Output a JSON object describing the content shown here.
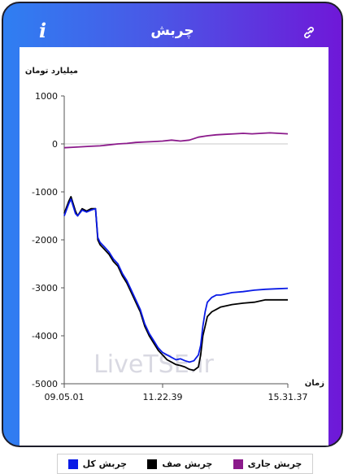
{
  "header": {
    "title": "چربش",
    "info_icon": "info-icon",
    "link_icon": "link-icon"
  },
  "watermark": "LiveTSE.ir",
  "chart_data": {
    "type": "line",
    "ylabel": "میلیارد تومان",
    "xlabel": "زمان",
    "ylim": [
      -5000,
      1000
    ],
    "yticks": [
      "1000",
      "0",
      "-1000",
      "-2000",
      "-3000",
      "-4000",
      "-5000"
    ],
    "ytick_values": [
      1000,
      0,
      -1000,
      -2000,
      -3000,
      -4000,
      -5000
    ],
    "xlim": [
      0,
      100
    ],
    "xticks": [
      "09.05.01",
      "11.22.39",
      "15.31.37"
    ],
    "xtick_values": [
      0,
      44,
      100
    ],
    "grid": "horizontal-zero-line",
    "legend_placement": "bottom",
    "series": [
      {
        "name": "چربش جاری",
        "color": "#8b1a8b",
        "x": [
          0,
          4,
          8,
          12,
          16,
          20,
          24,
          28,
          32,
          36,
          40,
          44,
          48,
          52,
          56,
          60,
          64,
          68,
          72,
          76,
          80,
          84,
          88,
          92,
          96,
          100
        ],
        "y": [
          -80,
          -70,
          -60,
          -50,
          -40,
          -20,
          0,
          10,
          30,
          40,
          50,
          60,
          80,
          60,
          80,
          140,
          170,
          190,
          200,
          210,
          220,
          210,
          220,
          230,
          220,
          210
        ]
      },
      {
        "name": "چربش صف",
        "color": "#000000",
        "x": [
          0,
          2,
          3,
          5,
          6,
          8,
          10,
          12,
          14,
          15,
          16,
          18,
          20,
          22,
          24,
          26,
          28,
          30,
          32,
          34,
          36,
          38,
          40,
          42,
          44,
          46,
          48,
          50,
          52,
          54,
          56,
          58,
          60,
          61,
          62,
          63,
          64,
          66,
          68,
          70,
          75,
          80,
          85,
          90,
          95,
          100
        ],
        "y": [
          -1450,
          -1200,
          -1100,
          -1400,
          -1500,
          -1350,
          -1400,
          -1350,
          -1350,
          -2000,
          -2100,
          -2200,
          -2300,
          -2450,
          -2550,
          -2750,
          -2900,
          -3100,
          -3300,
          -3500,
          -3800,
          -4000,
          -4150,
          -4300,
          -4400,
          -4500,
          -4550,
          -4600,
          -4620,
          -4650,
          -4700,
          -4720,
          -4650,
          -4400,
          -4000,
          -3800,
          -3600,
          -3500,
          -3450,
          -3400,
          -3350,
          -3320,
          -3300,
          -3250,
          -3250,
          -3250
        ]
      },
      {
        "name": "چربش کل",
        "color": "#0a1be6",
        "x": [
          0,
          2,
          3,
          5,
          6,
          8,
          10,
          12,
          14,
          15,
          16,
          18,
          20,
          22,
          24,
          26,
          28,
          30,
          32,
          34,
          36,
          38,
          40,
          42,
          44,
          46,
          48,
          50,
          52,
          54,
          56,
          58,
          60,
          61,
          62,
          63,
          64,
          66,
          68,
          70,
          75,
          80,
          85,
          90,
          95,
          100
        ],
        "y": [
          -1500,
          -1250,
          -1150,
          -1450,
          -1500,
          -1380,
          -1420,
          -1380,
          -1350,
          -1950,
          -2050,
          -2150,
          -2250,
          -2400,
          -2500,
          -2700,
          -2850,
          -3050,
          -3250,
          -3450,
          -3750,
          -3950,
          -4100,
          -4250,
          -4350,
          -4400,
          -4450,
          -4500,
          -4480,
          -4520,
          -4550,
          -4520,
          -4400,
          -4200,
          -3800,
          -3500,
          -3300,
          -3200,
          -3150,
          -3150,
          -3100,
          -3080,
          -3050,
          -3030,
          -3020,
          -3010
        ]
      }
    ]
  }
}
